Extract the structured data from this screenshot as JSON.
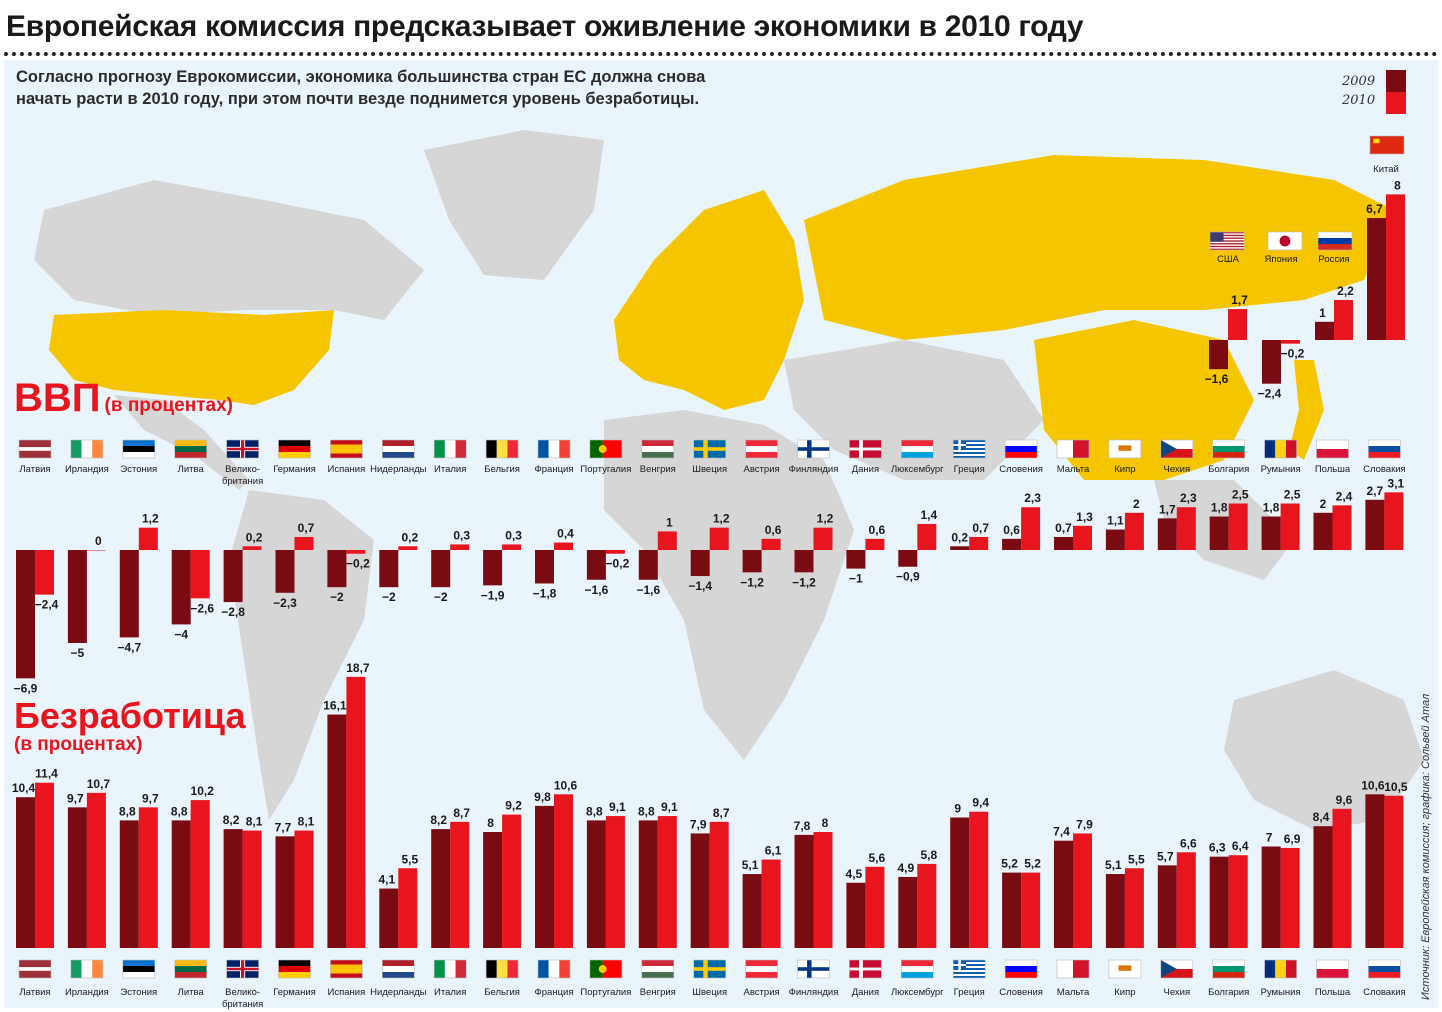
{
  "title": "Европейская комиссия предсказывает оживление экономики в 2010 году",
  "subtitle": [
    "Согласно прогнозу Еврокомиссии, экономика большинства стран ЕС должна снова",
    "начать расти в 2010 году, при этом почти везде поднимется уровень безработицы."
  ],
  "legend": {
    "y2009": "2009",
    "y2010": "2010"
  },
  "colors": {
    "y2009": "#7a0b12",
    "y2010": "#e8141e",
    "highlight": "#f5c500",
    "land": "#d6d6d6",
    "sea": "#eaf4fb"
  },
  "source": "Источник: Европейская комиссия; графика: Сольвей Атал",
  "chart_data": [
    {
      "type": "bar",
      "title": "ВВП",
      "title_note": "(в процентах)",
      "series": [
        {
          "name": "2009"
        },
        {
          "name": "2010"
        }
      ],
      "categories": [
        {
          "name": "Латвия",
          "flag": "lv",
          "v2009": -6.9,
          "v2010": -2.4
        },
        {
          "name": "Ирландия",
          "flag": "ie",
          "v2009": -5,
          "v2010": 0
        },
        {
          "name": "Эстония",
          "flag": "ee",
          "v2009": -4.7,
          "v2010": 1.2
        },
        {
          "name": "Литва",
          "flag": "lt",
          "v2009": -4,
          "v2010": -2.6
        },
        {
          "name": "Велико-британия",
          "flag": "gb",
          "v2009": -2.8,
          "v2010": 0.2
        },
        {
          "name": "Германия",
          "flag": "de",
          "v2009": -2.3,
          "v2010": 0.7
        },
        {
          "name": "Испания",
          "flag": "es",
          "v2009": -2,
          "v2010": -0.2
        },
        {
          "name": "Нидерланды",
          "flag": "nl",
          "v2009": -2,
          "v2010": 0.2
        },
        {
          "name": "Италия",
          "flag": "it",
          "v2009": -2,
          "v2010": 0.3
        },
        {
          "name": "Бельгия",
          "flag": "be",
          "v2009": -1.9,
          "v2010": 0.3
        },
        {
          "name": "Франция",
          "flag": "fr",
          "v2009": -1.8,
          "v2010": 0.4
        },
        {
          "name": "Португалия",
          "flag": "pt",
          "v2009": -1.6,
          "v2010": -0.2
        },
        {
          "name": "Венгрия",
          "flag": "hu",
          "v2009": -1.6,
          "v2010": 1
        },
        {
          "name": "Швеция",
          "flag": "se",
          "v2009": -1.4,
          "v2010": 1.2
        },
        {
          "name": "Австрия",
          "flag": "at",
          "v2009": -1.2,
          "v2010": 0.6
        },
        {
          "name": "Финляндия",
          "flag": "fi",
          "v2009": -1.2,
          "v2010": 1.2
        },
        {
          "name": "Дания",
          "flag": "dk",
          "v2009": -1,
          "v2010": 0.6
        },
        {
          "name": "Люксембург",
          "flag": "lu",
          "v2009": -0.9,
          "v2010": 1.4
        },
        {
          "name": "Греция",
          "flag": "gr",
          "v2009": 0.2,
          "v2010": 0.7
        },
        {
          "name": "Словения",
          "flag": "si",
          "v2009": 0.6,
          "v2010": 2.3
        },
        {
          "name": "Мальта",
          "flag": "mt",
          "v2009": 0.7,
          "v2010": 1.3
        },
        {
          "name": "Кипр",
          "flag": "cy",
          "v2009": 1.1,
          "v2010": 2
        },
        {
          "name": "Чехия",
          "flag": "cz",
          "v2009": 1.7,
          "v2010": 2.3
        },
        {
          "name": "Болгария",
          "flag": "bg",
          "v2009": 1.8,
          "v2010": 2.5
        },
        {
          "name": "Румыния",
          "flag": "ro",
          "v2009": 1.8,
          "v2010": 2.5
        },
        {
          "name": "Польша",
          "flag": "pl",
          "v2009": 2,
          "v2010": 2.4
        },
        {
          "name": "Словакия",
          "flag": "sk",
          "v2009": 2.7,
          "v2010": 3.1
        }
      ],
      "others": [
        {
          "name": "США",
          "flag": "us",
          "v2009": -1.6,
          "v2010": 1.7
        },
        {
          "name": "Япония",
          "flag": "jp",
          "v2009": -2.4,
          "v2010": -0.2
        },
        {
          "name": "Россия",
          "flag": "ru",
          "v2009": 1,
          "v2010": 2.2
        },
        {
          "name": "Китай",
          "flag": "cn",
          "v2009": 6.7,
          "v2010": 8
        }
      ]
    },
    {
      "type": "bar",
      "title": "Безработица",
      "title_note": "(в процентах)",
      "series": [
        {
          "name": "2009"
        },
        {
          "name": "2010"
        }
      ],
      "categories": [
        {
          "name": "Латвия",
          "flag": "lv",
          "v2009": 10.4,
          "v2010": 11.4
        },
        {
          "name": "Ирландия",
          "flag": "ie",
          "v2009": 9.7,
          "v2010": 10.7
        },
        {
          "name": "Эстония",
          "flag": "ee",
          "v2009": 8.8,
          "v2010": 9.7
        },
        {
          "name": "Литва",
          "flag": "lt",
          "v2009": 8.8,
          "v2010": 10.2
        },
        {
          "name": "Велико-британия",
          "flag": "gb",
          "v2009": 8.2,
          "v2010": 8.1
        },
        {
          "name": "Германия",
          "flag": "de",
          "v2009": 7.7,
          "v2010": 8.1
        },
        {
          "name": "Испания",
          "flag": "es",
          "v2009": 16.1,
          "v2010": 18.7
        },
        {
          "name": "Нидерланды",
          "flag": "nl",
          "v2009": 4.1,
          "v2010": 5.5
        },
        {
          "name": "Италия",
          "flag": "it",
          "v2009": 8.2,
          "v2010": 8.7
        },
        {
          "name": "Бельгия",
          "flag": "be",
          "v2009": 8,
          "v2010": 9.2
        },
        {
          "name": "Франция",
          "flag": "fr",
          "v2009": 9.8,
          "v2010": 10.6
        },
        {
          "name": "Португалия",
          "flag": "pt",
          "v2009": 8.8,
          "v2010": 9.1
        },
        {
          "name": "Венгрия",
          "flag": "hu",
          "v2009": 8.8,
          "v2010": 9.1
        },
        {
          "name": "Швеция",
          "flag": "se",
          "v2009": 7.9,
          "v2010": 8.7
        },
        {
          "name": "Австрия",
          "flag": "at",
          "v2009": 5.1,
          "v2010": 6.1
        },
        {
          "name": "Финляндия",
          "flag": "fi",
          "v2009": 7.8,
          "v2010": 8
        },
        {
          "name": "Дания",
          "flag": "dk",
          "v2009": 4.5,
          "v2010": 5.6
        },
        {
          "name": "Люксембург",
          "flag": "lu",
          "v2009": 4.9,
          "v2010": 5.8
        },
        {
          "name": "Греция",
          "flag": "gr",
          "v2009": 9,
          "v2010": 9.4
        },
        {
          "name": "Словения",
          "flag": "si",
          "v2009": 5.2,
          "v2010": 5.2
        },
        {
          "name": "Мальта",
          "flag": "mt",
          "v2009": 7.4,
          "v2010": 7.9
        },
        {
          "name": "Кипр",
          "flag": "cy",
          "v2009": 5.1,
          "v2010": 5.5
        },
        {
          "name": "Чехия",
          "flag": "cz",
          "v2009": 5.7,
          "v2010": 6.6
        },
        {
          "name": "Болгария",
          "flag": "bg",
          "v2009": 6.3,
          "v2010": 6.4
        },
        {
          "name": "Румыния",
          "flag": "ro",
          "v2009": 7,
          "v2010": 6.9
        },
        {
          "name": "Польша",
          "flag": "pl",
          "v2009": 8.4,
          "v2010": 9.6
        },
        {
          "name": "Словакия",
          "flag": "sk",
          "v2009": 10.6,
          "v2010": 10.5
        }
      ]
    }
  ]
}
